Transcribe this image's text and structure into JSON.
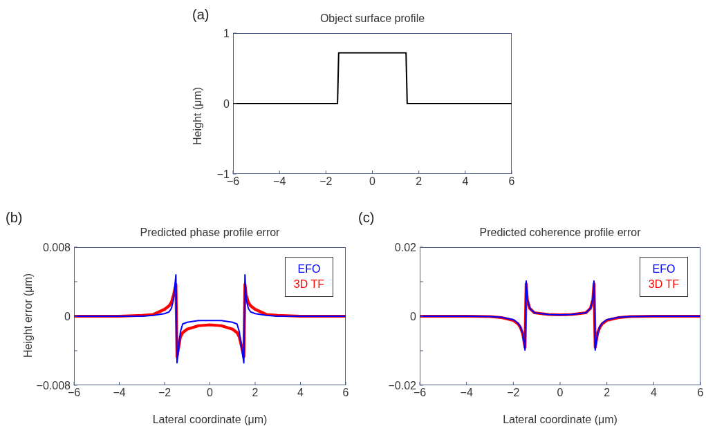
{
  "chart_data": [
    {
      "type": "line",
      "title": "Object surface profile",
      "ylabel": "Height (μm)",
      "annotations": [
        "(a)"
      ],
      "series": [
        {
          "color": "#000000",
          "x": [
            -6,
            -1.5,
            -1.45,
            1.45,
            1.5,
            6
          ],
          "values": [
            0,
            0,
            0.72,
            0.72,
            0,
            0
          ]
        }
      ],
      "xlim": [
        -6,
        6
      ],
      "xticks": [
        {
          "value": -6,
          "label": "−6"
        },
        {
          "value": -4,
          "label": "−4"
        },
        {
          "value": -2,
          "label": "−2"
        },
        0,
        2,
        4,
        6
      ],
      "ylim": [
        -1,
        1
      ],
      "yticks": [
        {
          "value": -1,
          "label": "−1"
        },
        0,
        1
      ],
      "grid": false,
      "legend": false,
      "marker": "none",
      "line_style": "solid"
    },
    {
      "type": "line",
      "title": "Predicted phase profile error",
      "xlabel": "Lateral coordinate (μm)",
      "ylabel": "Height error (μm)",
      "annotations": [
        "(b)"
      ],
      "series": [
        {
          "name": "EFO",
          "color": "#0000ff",
          "x": [
            -6,
            -4,
            -3,
            -2.5,
            -2,
            -1.8,
            -1.7,
            -1.6,
            -1.5,
            -1.45,
            -1.3,
            -1.2,
            -1,
            -0.5,
            0,
            0.5,
            1,
            1.2,
            1.3,
            1.5,
            1.55,
            1.6,
            1.7,
            1.8,
            2,
            2.5,
            3,
            4,
            6
          ],
          "values": [
            0,
            0,
            0,
            0.0001,
            0.0003,
            0.0005,
            0.0009,
            0.002,
            0.0048,
            -0.0054,
            -0.0018,
            -0.0009,
            -0.0007,
            -0.0005,
            -0.0005,
            -0.0005,
            -0.0007,
            -0.0009,
            -0.0018,
            -0.0054,
            0.0048,
            0.002,
            0.0009,
            0.0005,
            0.0003,
            0.0001,
            0,
            0,
            0
          ]
        },
        {
          "name": "3D TF",
          "color": "#ff0000",
          "x": [
            -6,
            -4,
            -3,
            -2.5,
            -2,
            -1.8,
            -1.7,
            -1.6,
            -1.5,
            -1.45,
            -1.3,
            -1.2,
            -1,
            -0.5,
            0,
            0.5,
            1,
            1.2,
            1.3,
            1.5,
            1.55,
            1.6,
            1.7,
            1.8,
            2,
            2.5,
            3,
            4,
            6
          ],
          "values": [
            0,
            0,
            0.0001,
            0.0002,
            0.0008,
            0.0012,
            0.0016,
            0.0025,
            0.0037,
            -0.0047,
            -0.0024,
            -0.0019,
            -0.0015,
            -0.0011,
            -0.001,
            -0.0011,
            -0.0015,
            -0.0019,
            -0.0024,
            -0.0047,
            0.0037,
            0.0025,
            0.0016,
            0.0012,
            0.0008,
            0.0002,
            0.0001,
            0,
            0
          ]
        }
      ],
      "xlim": [
        -6,
        6
      ],
      "xticks": [
        {
          "value": -6,
          "label": "−6"
        },
        {
          "value": -4,
          "label": "−4"
        },
        {
          "value": -2,
          "label": "−2"
        },
        0,
        2,
        4,
        6
      ],
      "ylim": [
        -0.008,
        0.008
      ],
      "yticks": [
        {
          "value": -0.008,
          "label": "−0.008"
        },
        {
          "value": -0.004,
          "label": null
        },
        0,
        {
          "value": 0.004,
          "label": null
        },
        0.008
      ],
      "grid": false,
      "legend": "top right",
      "marker": "none",
      "line_style": "solid"
    },
    {
      "type": "line",
      "title": "Predicted coherence profile error",
      "xlabel": "Lateral coordinate (μm)",
      "annotations": [
        "(c)"
      ],
      "series": [
        {
          "name": "EFO",
          "color": "#0000ff",
          "x": [
            -6,
            -4,
            -3,
            -2.5,
            -2,
            -1.8,
            -1.7,
            -1.6,
            -1.5,
            -1.45,
            -1.4,
            -1.3,
            -1.1,
            -0.5,
            0,
            0.5,
            1.1,
            1.3,
            1.4,
            1.45,
            1.5,
            1.6,
            1.7,
            1.8,
            2,
            2.5,
            3,
            4,
            6
          ],
          "values": [
            0,
            0,
            -0.0001,
            -0.0003,
            -0.001,
            -0.002,
            -0.003,
            -0.005,
            -0.0098,
            0.0102,
            0.005,
            0.0023,
            0.001,
            0.0005,
            0.0004,
            0.0005,
            0.001,
            0.0023,
            0.005,
            0.0102,
            -0.0098,
            -0.005,
            -0.003,
            -0.002,
            -0.001,
            -0.0003,
            -0.0001,
            0,
            0
          ]
        },
        {
          "name": "3D TF",
          "color": "#ff0000",
          "x": [
            -6,
            -4,
            -3,
            -2.5,
            -2,
            -1.8,
            -1.7,
            -1.6,
            -1.5,
            -1.45,
            -1.4,
            -1.3,
            -1.1,
            -0.5,
            0,
            0.5,
            1.1,
            1.3,
            1.4,
            1.45,
            1.5,
            1.6,
            1.7,
            1.8,
            2,
            2.5,
            3,
            4,
            6
          ],
          "values": [
            0,
            0,
            -0.0001,
            -0.0004,
            -0.0012,
            -0.0022,
            -0.0032,
            -0.005,
            -0.009,
            0.0094,
            0.0048,
            0.0023,
            0.001,
            0.0005,
            0.0004,
            0.0005,
            0.001,
            0.0023,
            0.0048,
            0.0094,
            -0.009,
            -0.005,
            -0.0032,
            -0.0022,
            -0.0012,
            -0.0004,
            -0.0001,
            0,
            0
          ]
        }
      ],
      "xlim": [
        -6,
        6
      ],
      "xticks": [
        {
          "value": -6,
          "label": "−6"
        },
        {
          "value": -4,
          "label": "−4"
        },
        {
          "value": -2,
          "label": "−2"
        },
        0,
        2,
        4,
        6
      ],
      "ylim": [
        -0.02,
        0.02
      ],
      "yticks": [
        {
          "value": -0.02,
          "label": "−0.02"
        },
        {
          "value": -0.01,
          "label": null
        },
        0,
        {
          "value": 0.01,
          "label": null
        },
        0.02
      ],
      "grid": false,
      "legend": "top right",
      "marker": "none",
      "line_style": "solid"
    }
  ]
}
